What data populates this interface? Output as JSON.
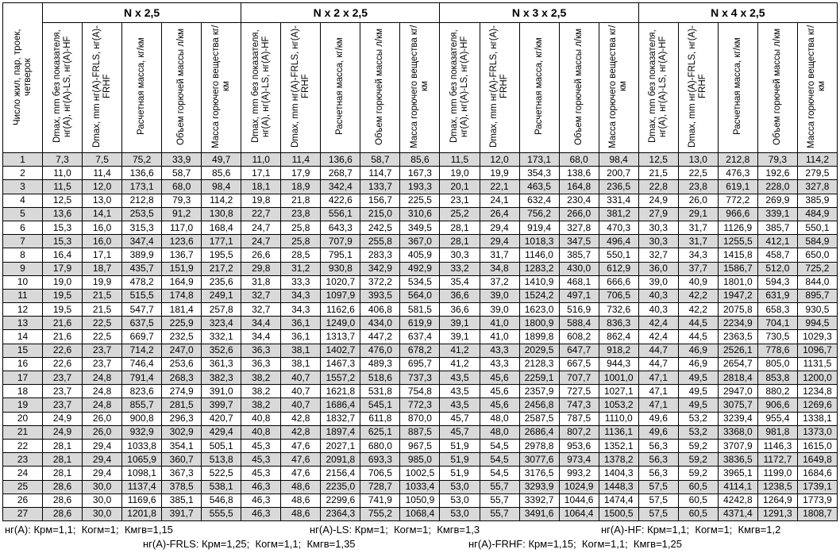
{
  "table": {
    "row_header": "Число жил, пар, троек, четверок",
    "groups": [
      "N x 2,5",
      "N x 2 x 2,5",
      "N x 3 x 2,5",
      "N x 4 x 2,5"
    ],
    "column_headers": [
      "Dmax, mm без показателя, нг(А), нг(А)-LS, нг(А)-HF",
      "Dmax, mm нг(А)-FRLS, нг(А)-FRHF",
      "Расчетная масса, кг/км",
      "Объем горючей массы л/км",
      "Масса горючего вещества кг/км"
    ],
    "rows": [
      [
        "1",
        "7,3",
        "7,5",
        "75,2",
        "33,9",
        "49,7",
        "11,0",
        "11,4",
        "136,6",
        "58,7",
        "85,6",
        "11,5",
        "12,0",
        "173,1",
        "68,0",
        "98,4",
        "12,5",
        "13,0",
        "212,8",
        "79,3",
        "114,2"
      ],
      [
        "2",
        "11,0",
        "11,4",
        "136,6",
        "58,7",
        "85,6",
        "17,1",
        "17,9",
        "268,7",
        "114,7",
        "167,3",
        "19,0",
        "19,9",
        "354,3",
        "138,6",
        "200,7",
        "21,5",
        "22,5",
        "476,3",
        "192,6",
        "279,5"
      ],
      [
        "3",
        "11,5",
        "12,0",
        "173,1",
        "68,0",
        "98,4",
        "18,1",
        "18,9",
        "342,4",
        "133,7",
        "193,3",
        "20,1",
        "22,1",
        "463,5",
        "164,8",
        "236,5",
        "22,8",
        "23,8",
        "619,1",
        "228,0",
        "327,8"
      ],
      [
        "4",
        "12,5",
        "13,0",
        "212,8",
        "79,3",
        "114,2",
        "19,8",
        "21,8",
        "422,6",
        "156,7",
        "225,5",
        "23,1",
        "24,1",
        "632,4",
        "230,4",
        "331,4",
        "24,9",
        "26,0",
        "772,2",
        "269,9",
        "385,9"
      ],
      [
        "5",
        "13,6",
        "14,1",
        "253,5",
        "91,2",
        "130,8",
        "22,7",
        "23,8",
        "556,1",
        "215,0",
        "310,6",
        "25,2",
        "26,4",
        "756,2",
        "266,0",
        "381,2",
        "27,9",
        "29,1",
        "966,6",
        "339,1",
        "484,9"
      ],
      [
        "6",
        "15,3",
        "16,0",
        "315,3",
        "117,0",
        "168,4",
        "24,7",
        "25,8",
        "643,3",
        "242,5",
        "349,5",
        "28,1",
        "29,4",
        "919,4",
        "327,8",
        "470,3",
        "30,3",
        "31,7",
        "1126,9",
        "385,7",
        "550,1"
      ],
      [
        "7",
        "15,3",
        "16,0",
        "347,4",
        "123,6",
        "177,1",
        "24,7",
        "25,8",
        "707,9",
        "255,8",
        "367,0",
        "28,1",
        "29,4",
        "1018,3",
        "347,5",
        "496,4",
        "30,3",
        "31,7",
        "1255,5",
        "412,1",
        "584,9"
      ],
      [
        "8",
        "16,4",
        "17,1",
        "389,9",
        "136,7",
        "195,5",
        "26,6",
        "28,5",
        "795,1",
        "283,3",
        "405,9",
        "30,3",
        "31,7",
        "1146,0",
        "385,7",
        "550,1",
        "32,7",
        "34,3",
        "1415,8",
        "458,7",
        "650,0"
      ],
      [
        "9",
        "17,9",
        "18,7",
        "435,7",
        "151,9",
        "217,2",
        "29,8",
        "31,2",
        "930,8",
        "342,9",
        "492,9",
        "33,2",
        "34,8",
        "1283,2",
        "430,0",
        "612,9",
        "36,0",
        "37,7",
        "1586,7",
        "512,0",
        "725,2"
      ],
      [
        "10",
        "19,0",
        "19,9",
        "478,2",
        "164,9",
        "235,6",
        "31,8",
        "33,3",
        "1020,7",
        "372,2",
        "534,5",
        "35,4",
        "37,2",
        "1410,9",
        "468,1",
        "666,6",
        "39,0",
        "40,9",
        "1801,0",
        "594,3",
        "844,0"
      ],
      [
        "11",
        "19,5",
        "21,5",
        "515,5",
        "174,8",
        "249,1",
        "32,7",
        "34,3",
        "1097,9",
        "393,5",
        "564,0",
        "36,6",
        "39,0",
        "1524,2",
        "497,1",
        "706,5",
        "40,3",
        "42,2",
        "1947,2",
        "631,9",
        "895,7"
      ],
      [
        "12",
        "19,5",
        "21,5",
        "547,7",
        "181,4",
        "257,8",
        "32,7",
        "34,3",
        "1162,6",
        "406,8",
        "581,5",
        "36,6",
        "39,0",
        "1623,0",
        "516,9",
        "732,6",
        "40,3",
        "42,2",
        "2075,8",
        "658,3",
        "930,5"
      ],
      [
        "13",
        "21,6",
        "22,5",
        "637,5",
        "225,9",
        "323,4",
        "34,4",
        "36,1",
        "1249,0",
        "434,0",
        "619,9",
        "39,1",
        "41,0",
        "1800,9",
        "588,4",
        "836,3",
        "42,4",
        "44,5",
        "2234,9",
        "704,1",
        "994,5"
      ],
      [
        "14",
        "21,6",
        "22,5",
        "669,7",
        "232,5",
        "332,1",
        "34,4",
        "36,1",
        "1313,7",
        "447,2",
        "637,4",
        "39,1",
        "41,0",
        "1899,8",
        "608,2",
        "862,4",
        "42,4",
        "44,5",
        "2363,5",
        "730,5",
        "1029,3"
      ],
      [
        "15",
        "22,6",
        "23,7",
        "714,2",
        "247,0",
        "352,6",
        "36,3",
        "38,1",
        "1402,7",
        "476,0",
        "678,2",
        "41,2",
        "43,3",
        "2029,5",
        "647,7",
        "918,2",
        "44,7",
        "46,9",
        "2526,1",
        "778,6",
        "1096,7"
      ],
      [
        "16",
        "22,6",
        "23,7",
        "746,4",
        "253,6",
        "361,3",
        "36,3",
        "38,1",
        "1467,3",
        "489,3",
        "695,7",
        "41,2",
        "43,3",
        "2128,3",
        "667,5",
        "944,3",
        "44,7",
        "46,9",
        "2654,7",
        "805,0",
        "1131,5"
      ],
      [
        "17",
        "23,7",
        "24,8",
        "791,4",
        "268,3",
        "382,3",
        "38,2",
        "40,7",
        "1557,2",
        "518,6",
        "737,3",
        "43,5",
        "45,6",
        "2259,1",
        "707,7",
        "1001,0",
        "47,1",
        "49,5",
        "2818,4",
        "853,8",
        "1200,0"
      ],
      [
        "18",
        "23,7",
        "24,8",
        "823,6",
        "274,9",
        "391,0",
        "38,2",
        "40,7",
        "1621,8",
        "531,8",
        "754,8",
        "43,5",
        "45,6",
        "2357,9",
        "727,5",
        "1027,1",
        "47,1",
        "49,5",
        "2947,0",
        "880,2",
        "1234,8"
      ],
      [
        "19",
        "23,7",
        "24,8",
        "855,7",
        "281,5",
        "399,7",
        "38,2",
        "40,7",
        "1686,4",
        "545,1",
        "772,3",
        "43,5",
        "45,6",
        "2456,8",
        "747,3",
        "1053,2",
        "47,1",
        "49,5",
        "3075,7",
        "906,6",
        "1269,6"
      ],
      [
        "20",
        "24,9",
        "26,0",
        "900,8",
        "296,3",
        "420,7",
        "40,8",
        "42,8",
        "1832,7",
        "611,8",
        "870,0",
        "45,7",
        "48,0",
        "2587,5",
        "787,5",
        "1110,0",
        "49,6",
        "53,2",
        "3239,4",
        "955,4",
        "1338,1"
      ],
      [
        "21",
        "24,9",
        "26,0",
        "932,9",
        "302,9",
        "429,4",
        "40,8",
        "42,8",
        "1897,4",
        "625,1",
        "887,5",
        "45,7",
        "48,0",
        "2686,4",
        "807,2",
        "1136,1",
        "49,6",
        "53,2",
        "3368,0",
        "981,8",
        "1373,0"
      ],
      [
        "22",
        "28,1",
        "29,4",
        "1033,8",
        "354,1",
        "505,1",
        "45,3",
        "47,6",
        "2027,1",
        "680,0",
        "967,5",
        "51,9",
        "54,5",
        "2978,8",
        "953,6",
        "1352,1",
        "56,3",
        "59,2",
        "3707,9",
        "1146,3",
        "1615,0"
      ],
      [
        "23",
        "28,1",
        "29,4",
        "1065,9",
        "360,7",
        "513,8",
        "45,3",
        "47,6",
        "2091,8",
        "693,3",
        "985,0",
        "51,9",
        "54,5",
        "3077,6",
        "973,4",
        "1378,2",
        "56,3",
        "59,2",
        "3836,5",
        "1172,7",
        "1649,8"
      ],
      [
        "24",
        "28,1",
        "29,4",
        "1098,1",
        "367,3",
        "522,5",
        "45,3",
        "47,6",
        "2156,4",
        "706,5",
        "1002,5",
        "51,9",
        "54,5",
        "3176,5",
        "993,2",
        "1404,3",
        "56,3",
        "59,2",
        "3965,1",
        "1199,0",
        "1684,6"
      ],
      [
        "25",
        "28,6",
        "30,0",
        "1137,4",
        "378,5",
        "538,1",
        "46,3",
        "48,6",
        "2235,0",
        "728,7",
        "1033,4",
        "53,0",
        "55,7",
        "3293,9",
        "1024,9",
        "1448,3",
        "57,5",
        "60,5",
        "4114,1",
        "1238,5",
        "1739,1"
      ],
      [
        "26",
        "28,6",
        "30,0",
        "1169,6",
        "385,1",
        "546,8",
        "46,3",
        "48,6",
        "2299,6",
        "741,9",
        "1050,9",
        "53,0",
        "55,7",
        "3392,7",
        "1044,6",
        "1474,4",
        "57,5",
        "60,5",
        "4242,8",
        "1264,9",
        "1773,9"
      ],
      [
        "27",
        "28,6",
        "30,0",
        "1201,8",
        "391,7",
        "555,5",
        "46,3",
        "48,6",
        "2364,3",
        "755,2",
        "1068,4",
        "53,0",
        "55,7",
        "3491,6",
        "1064,4",
        "1500,5",
        "57,5",
        "60,5",
        "4371,4",
        "1291,3",
        "1808,7"
      ]
    ]
  },
  "notes": [
    "нг(А): Кpм=1,1;  Кoгм=1;  Кмгв=1,15",
    "нг(А)-LS: Кpм=1;  Кoгм=1;  Кмгв=1,3",
    "нг(А)-HF: Кpм=1,1;  Кoгм=1;  Кмгв=1,2",
    "нг(А)-FRLS: Кpм=1,25;  Кoгм=1,1;  Кмгв=1,35",
    "нг(А)-FRHF: Кpм=1,15;  Кoгм=1,1;  Кмгв=1,25"
  ]
}
